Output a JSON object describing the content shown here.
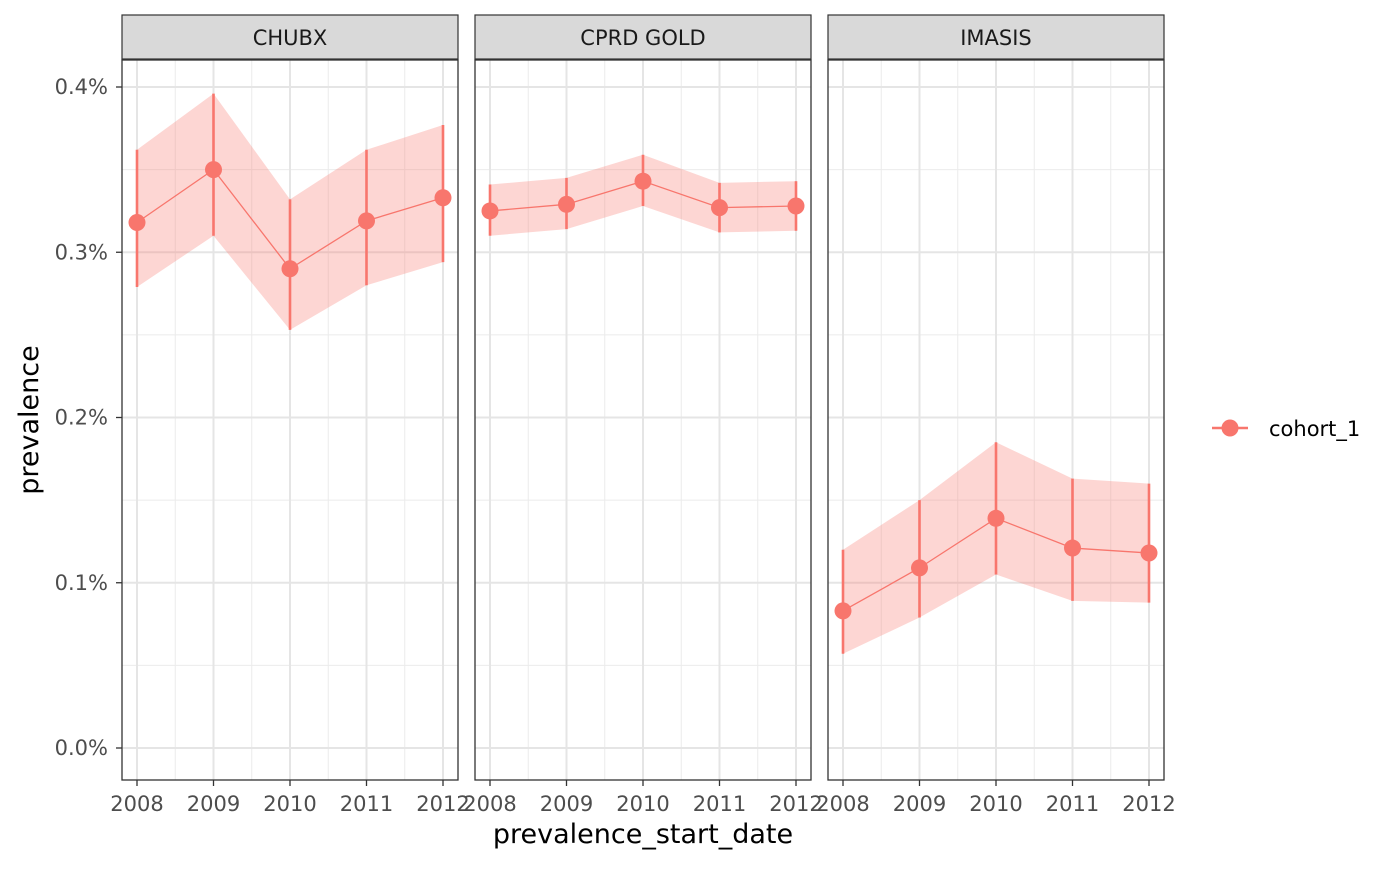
{
  "chart_data": {
    "type": "line",
    "facets": [
      "CHUBX",
      "CPRD GOLD",
      "IMASIS"
    ],
    "x": [
      "2008",
      "2009",
      "2010",
      "2011",
      "2012"
    ],
    "xlabel": "prevalence_start_date",
    "ylabel": "prevalence",
    "y_ticks": [
      "0.0%",
      "0.1%",
      "0.2%",
      "0.3%",
      "0.4%"
    ],
    "y_tick_values": [
      0.0,
      0.1,
      0.2,
      0.3,
      0.4
    ],
    "ylim": [
      -0.02,
      0.415
    ],
    "grid": true,
    "legend_position": "right",
    "series": [
      {
        "name": "cohort_1",
        "color": "#F8766D",
        "ribbon_color": "#F8766D",
        "facets": {
          "CHUBX": {
            "values": [
              0.318,
              0.35,
              0.29,
              0.319,
              0.333
            ],
            "lower": [
              0.279,
              0.31,
              0.253,
              0.28,
              0.294
            ],
            "upper": [
              0.362,
              0.396,
              0.332,
              0.362,
              0.377
            ]
          },
          "CPRD GOLD": {
            "values": [
              0.325,
              0.329,
              0.343,
              0.327,
              0.328
            ],
            "lower": [
              0.31,
              0.314,
              0.328,
              0.312,
              0.313
            ],
            "upper": [
              0.341,
              0.345,
              0.359,
              0.342,
              0.343
            ]
          },
          "IMASIS": {
            "values": [
              0.083,
              0.109,
              0.139,
              0.121,
              0.118
            ],
            "lower": [
              0.057,
              0.079,
              0.105,
              0.089,
              0.088
            ],
            "upper": [
              0.12,
              0.15,
              0.185,
              0.163,
              0.16
            ]
          }
        }
      }
    ]
  }
}
